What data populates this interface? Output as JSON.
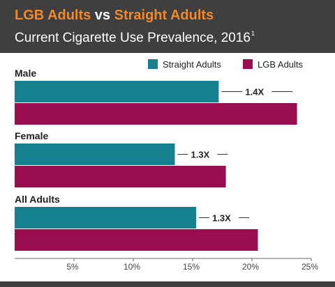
{
  "header": {
    "title_highlight_1": "LGB Adults",
    "title_vs": " vs ",
    "title_highlight_2": "Straight Adults",
    "subtitle": "Current Cigarette Use Prevalence, 2016",
    "subtitle_footnote": "1"
  },
  "colors": {
    "header_bg": "#3f3f3f",
    "accent": "#f0892c",
    "straight": "#16808f",
    "lgb": "#9a0e4f"
  },
  "chart_data": {
    "type": "bar",
    "orientation": "horizontal",
    "title": "LGB Adults vs Straight Adults Current Cigarette Use Prevalence, 2016",
    "categories": [
      "Male",
      "Female",
      "All Adults"
    ],
    "series": [
      {
        "name": "Straight Adults",
        "color": "#16808f",
        "values": [
          17.2,
          13.5,
          15.3
        ]
      },
      {
        "name": "LGB Adults",
        "color": "#9a0e4f",
        "values": [
          23.8,
          17.8,
          20.5
        ]
      }
    ],
    "annotations": [
      "1.4X",
      "1.3X",
      "1.3X"
    ],
    "xlim": [
      0,
      25
    ],
    "ticks": [
      5,
      10,
      15,
      20,
      25
    ],
    "tick_labels": [
      "5%",
      "10%",
      "15%",
      "20%",
      "25%"
    ],
    "legend": "top-right",
    "grid": false
  }
}
